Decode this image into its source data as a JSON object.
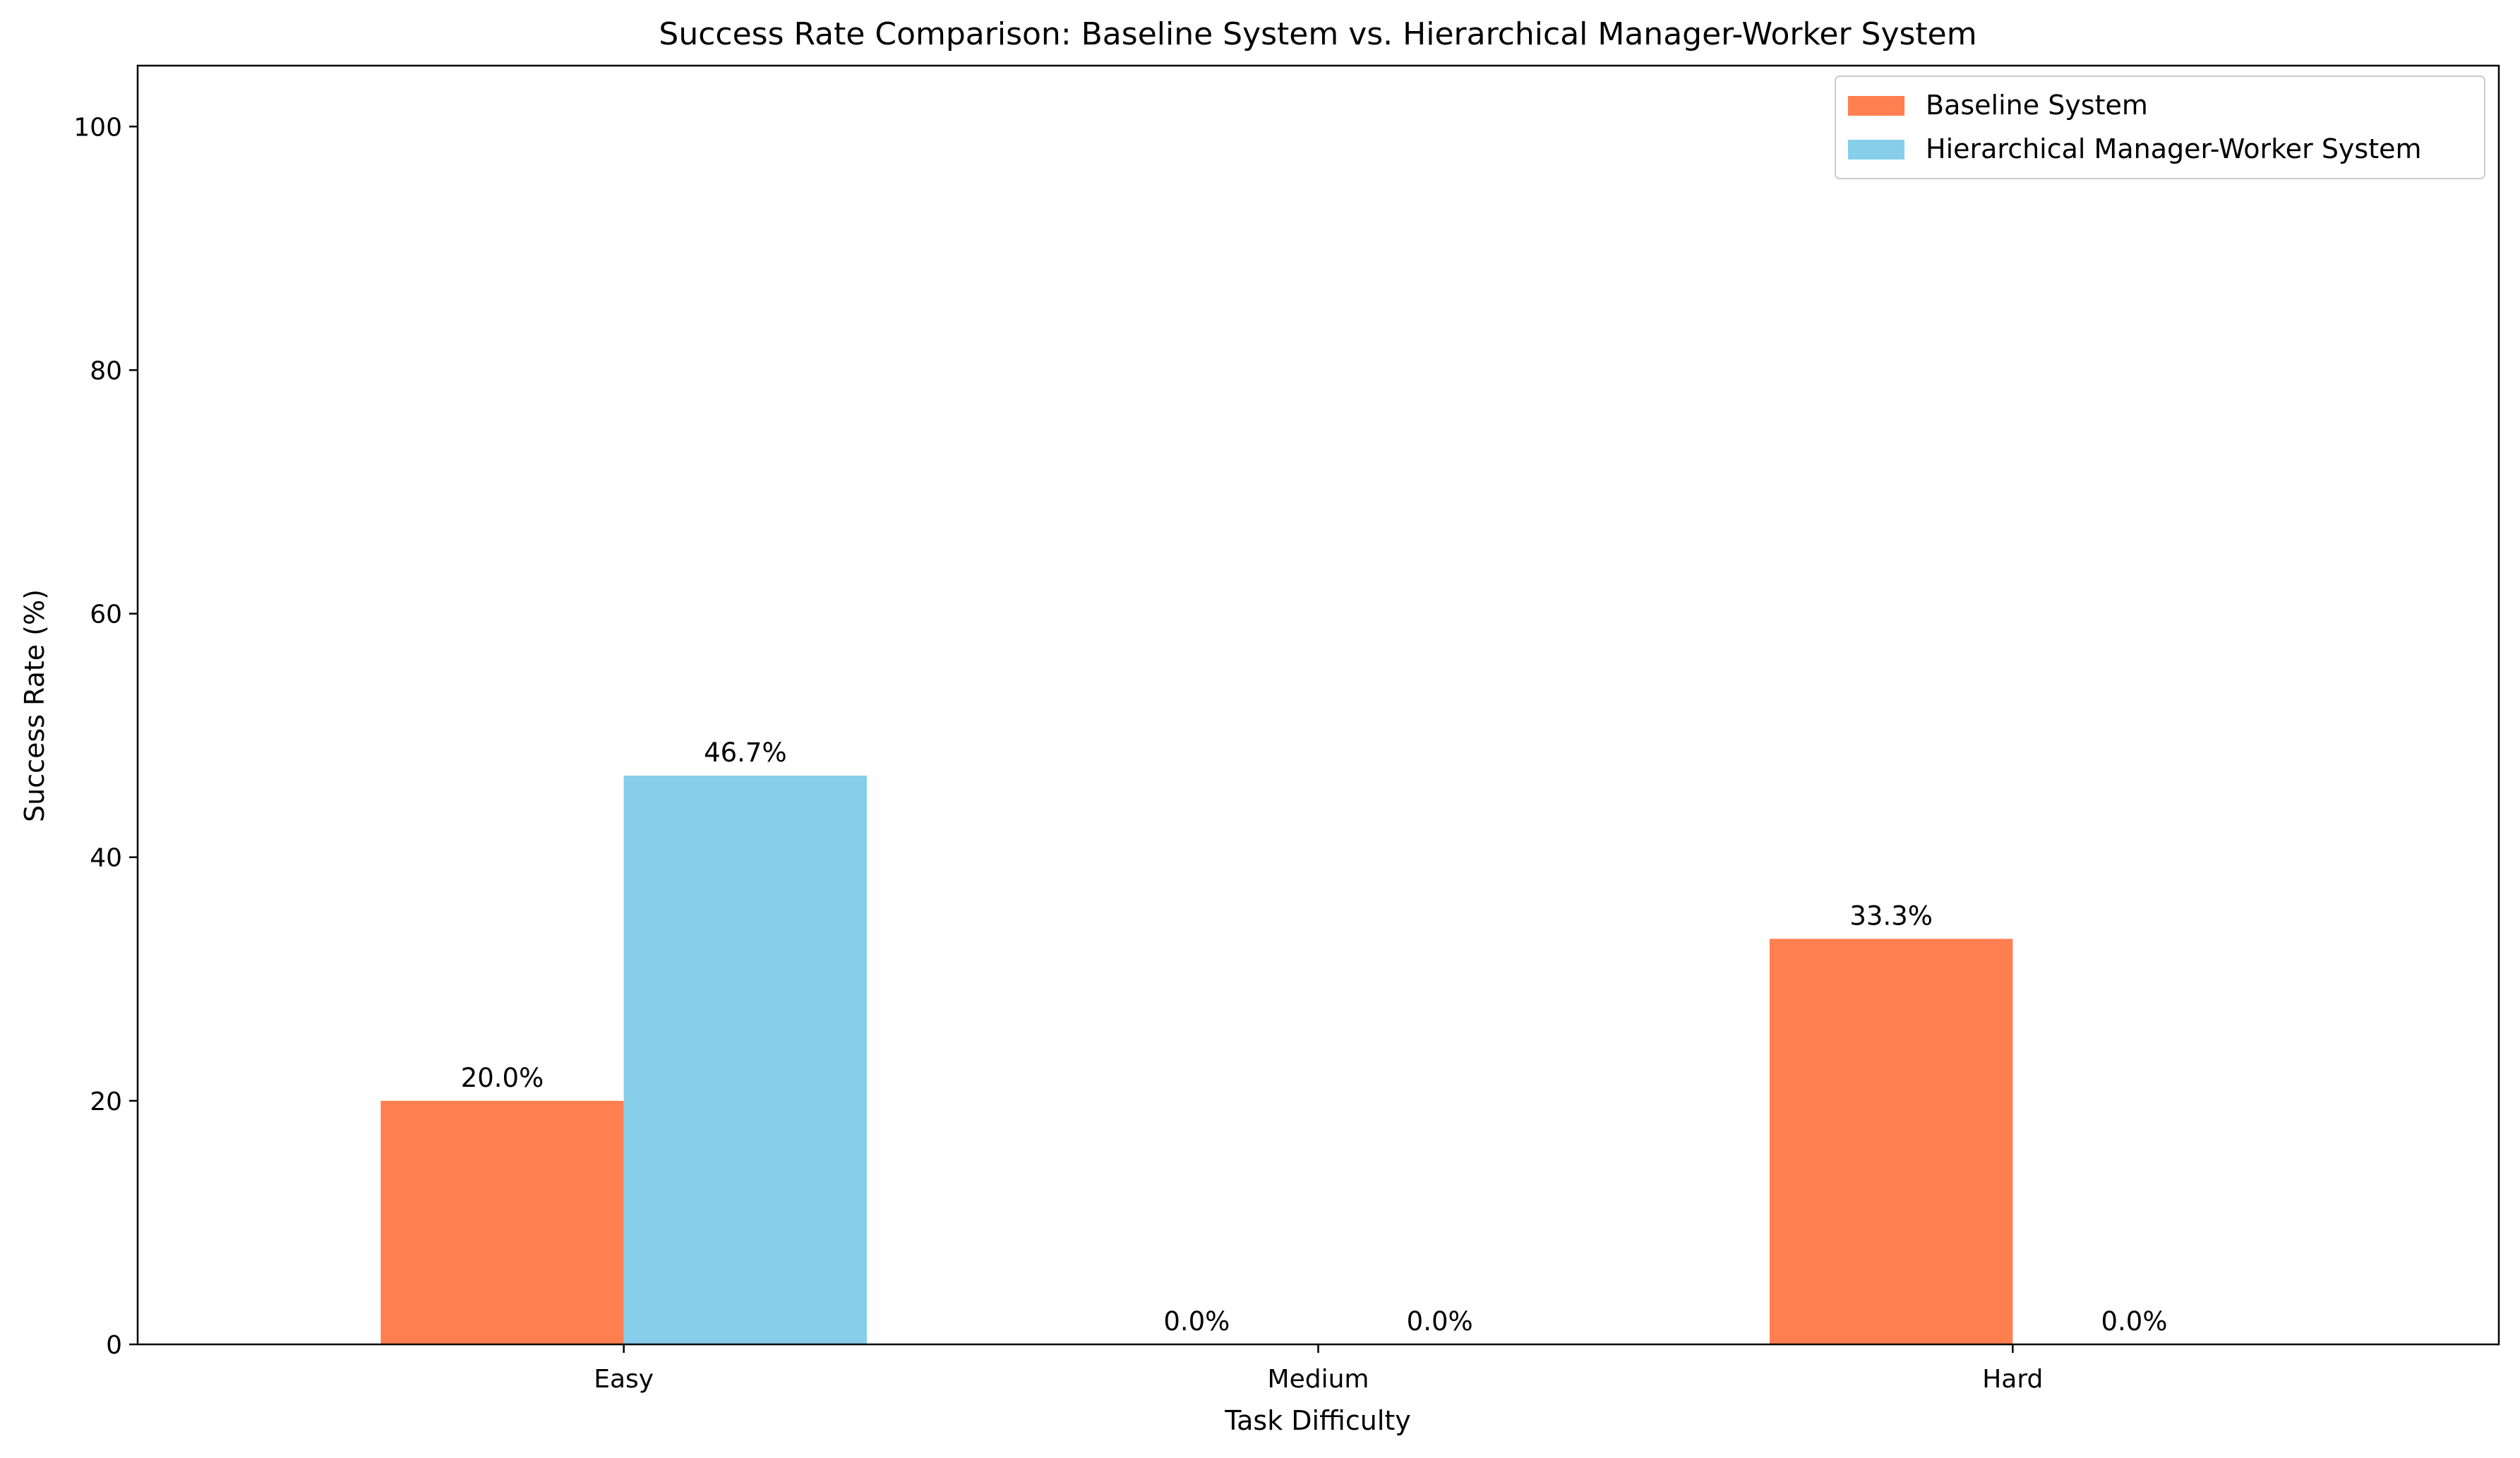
{
  "chart_data": {
    "type": "bar",
    "title": "Success Rate Comparison: Baseline System vs. Hierarchical Manager-Worker System",
    "xlabel": "Task Difficulty",
    "ylabel": "Success Rate (%)",
    "categories": [
      "Easy",
      "Medium",
      "Hard"
    ],
    "ylim": [
      0,
      105
    ],
    "yticks": [
      0,
      20,
      40,
      60,
      80,
      100
    ],
    "grid": false,
    "legend_position": "top-right",
    "series": [
      {
        "name": "Baseline System",
        "color": "#ff7f50",
        "values": [
          20.0,
          0.0,
          33.3
        ],
        "labels": [
          "20.0%",
          "0.0%",
          "33.3%"
        ]
      },
      {
        "name": "Hierarchical Manager-Worker System",
        "color": "#87ceeb",
        "values": [
          46.7,
          0.0,
          0.0
        ],
        "labels": [
          "46.7%",
          "0.0%",
          "0.0%"
        ]
      }
    ]
  }
}
